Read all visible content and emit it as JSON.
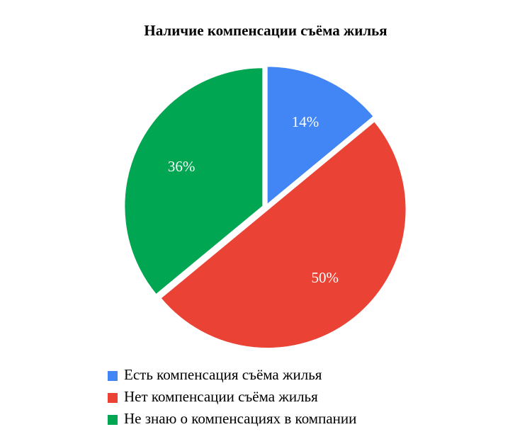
{
  "chart_data": {
    "type": "pie",
    "title": "Наличие компенсации съёма жилья",
    "categories": [
      "Есть компенсация съёма жилья",
      "Нет компенсации съёма жилья",
      "Не знаю о компенсациях в компании"
    ],
    "values": [
      14,
      50,
      36
    ],
    "value_labels": [
      "14%",
      "50%",
      "36%"
    ],
    "colors": [
      "#4285f4",
      "#ea4335",
      "#00a651"
    ]
  }
}
